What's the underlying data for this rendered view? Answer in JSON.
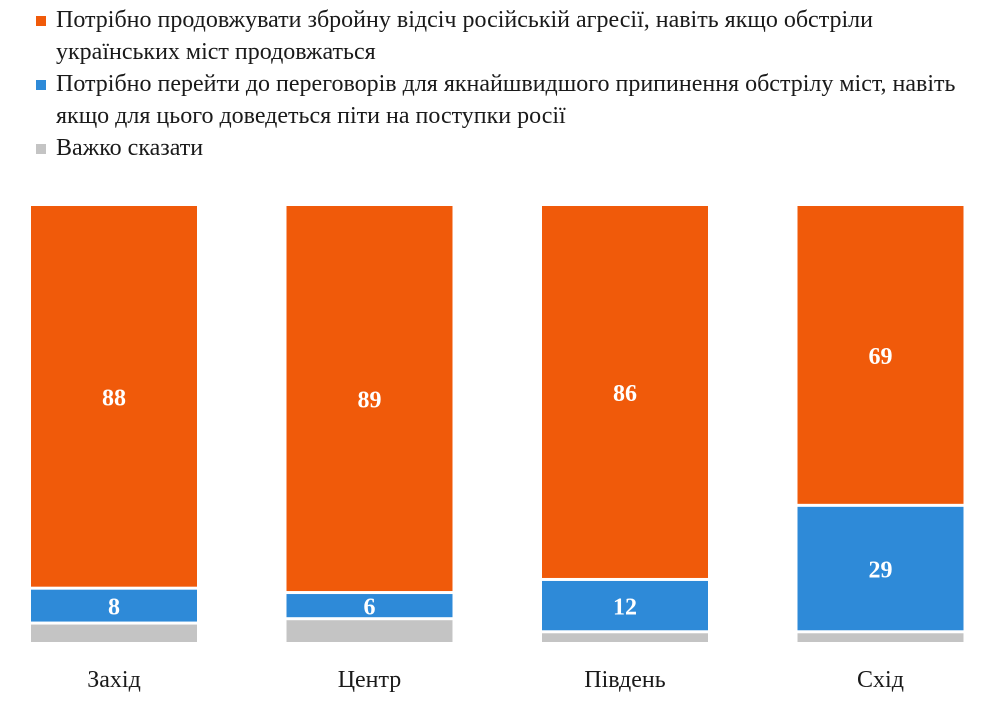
{
  "chart_data": {
    "type": "bar",
    "stacked": true,
    "percent": true,
    "categories": [
      "Захід",
      "Центр",
      "Південь",
      "Схід"
    ],
    "series": [
      {
        "name": "Потрібно продовжувати збройну відсіч російській агресії, навіть якщо обстріли українських міст продовжаться",
        "color": "#f05a0a",
        "values": [
          88,
          89,
          86,
          69
        ]
      },
      {
        "name": "Потрібно перейти до переговорів для якнайшвидшого припинення обстрілу міст, навіть якщо для цього доведеться піти на поступки росії",
        "color": "#2e8ad8",
        "values": [
          8,
          6,
          12,
          29
        ]
      },
      {
        "name": "Важко сказати",
        "color": "#c4c4c4",
        "values": [
          4,
          5,
          2,
          2
        ]
      }
    ],
    "value_labels_shown_for_series": [
      0,
      1
    ],
    "legend_position": "top-left",
    "grid": false,
    "axes_visible": false
  }
}
